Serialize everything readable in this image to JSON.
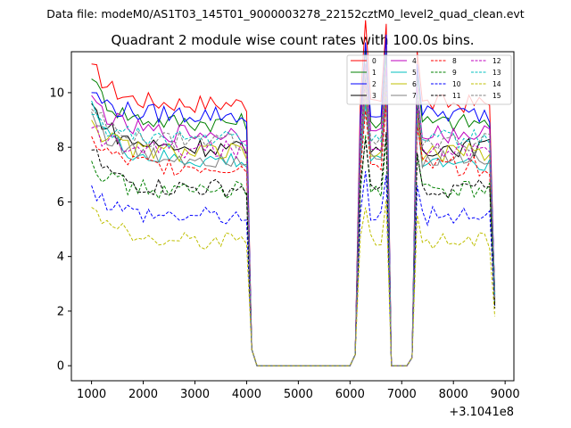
{
  "suptitle": "Data file: modeM0/AS1T03_145T01_9000003278_22152cztM0_level2_quad_clean.evt",
  "chart_data": {
    "type": "line",
    "title": "Quadrant 2 module wise count rates with 100.0s bins.",
    "xlabel": "",
    "ylabel": "",
    "x_offset_label": "+3.1041e8",
    "xlim": [
      610,
      9170
    ],
    "ylim": [
      -0.55,
      11.5
    ],
    "xticks": [
      1000,
      2000,
      3000,
      4000,
      5000,
      6000,
      7000,
      8000,
      9000
    ],
    "yticks": [
      0,
      2,
      4,
      6,
      8,
      10
    ],
    "grid": false,
    "legend_position": "top-right",
    "x_step": 100,
    "x_start": 1000,
    "series": [
      {
        "name": "0",
        "color": "#ff0000",
        "style": "solid",
        "level": 9.6,
        "start": 11.05,
        "end": 2.3
      },
      {
        "name": "1",
        "color": "#008000",
        "style": "solid",
        "level": 8.9,
        "start": 10.5,
        "end": 2.4
      },
      {
        "name": "2",
        "color": "#0000ff",
        "style": "solid",
        "level": 9.2,
        "start": 10.0,
        "end": 2.6
      },
      {
        "name": "3",
        "color": "#000000",
        "style": "solid",
        "level": 8.0,
        "start": 9.6,
        "end": 2.7
      },
      {
        "name": "4",
        "color": "#bf00bf",
        "style": "solid",
        "level": 8.5,
        "start": 9.9,
        "end": 2.5
      },
      {
        "name": "5",
        "color": "#00bfbf",
        "style": "solid",
        "level": 7.5,
        "start": 9.7,
        "end": 2.5
      },
      {
        "name": "6",
        "color": "#bfbf00",
        "style": "solid",
        "level": 7.8,
        "start": 9.0,
        "end": 2.3
      },
      {
        "name": "7",
        "color": "#808080",
        "style": "solid",
        "level": 7.6,
        "start": 9.3,
        "end": 2.6
      },
      {
        "name": "8",
        "color": "#ff0000",
        "style": "dashed",
        "level": 7.3,
        "start": 8.4,
        "end": 2.2
      },
      {
        "name": "9",
        "color": "#008000",
        "style": "dashed",
        "level": 6.4,
        "start": 7.5,
        "end": 2.2
      },
      {
        "name": "10",
        "color": "#0000ff",
        "style": "dashed",
        "level": 5.5,
        "start": 6.6,
        "end": 2.1
      },
      {
        "name": "11",
        "color": "#000000",
        "style": "dashed",
        "level": 6.5,
        "start": 7.9,
        "end": 2.1
      },
      {
        "name": "12",
        "color": "#bf00bf",
        "style": "dashed",
        "level": 7.9,
        "start": 8.7,
        "end": 2.5
      },
      {
        "name": "13",
        "color": "#00bfbf",
        "style": "dashed",
        "level": 8.3,
        "start": 9.2,
        "end": 2.5
      },
      {
        "name": "14",
        "color": "#bfbf00",
        "style": "dashed",
        "level": 4.6,
        "start": 5.8,
        "end": 1.8
      },
      {
        "name": "15",
        "color": "#808080",
        "style": "dashed",
        "level": 8.2,
        "start": 9.4,
        "end": 2.4
      }
    ],
    "segments": [
      {
        "from": 1000,
        "to": 3900,
        "kind": "active"
      },
      {
        "from": 4000,
        "to": 4200,
        "kind": "drop"
      },
      {
        "from": 4200,
        "to": 6000,
        "kind": "zero"
      },
      {
        "from": 6100,
        "to": 6700,
        "kind": "peak"
      },
      {
        "from": 6800,
        "to": 7100,
        "kind": "zero"
      },
      {
        "from": 7200,
        "to": 8800,
        "kind": "active"
      }
    ]
  }
}
